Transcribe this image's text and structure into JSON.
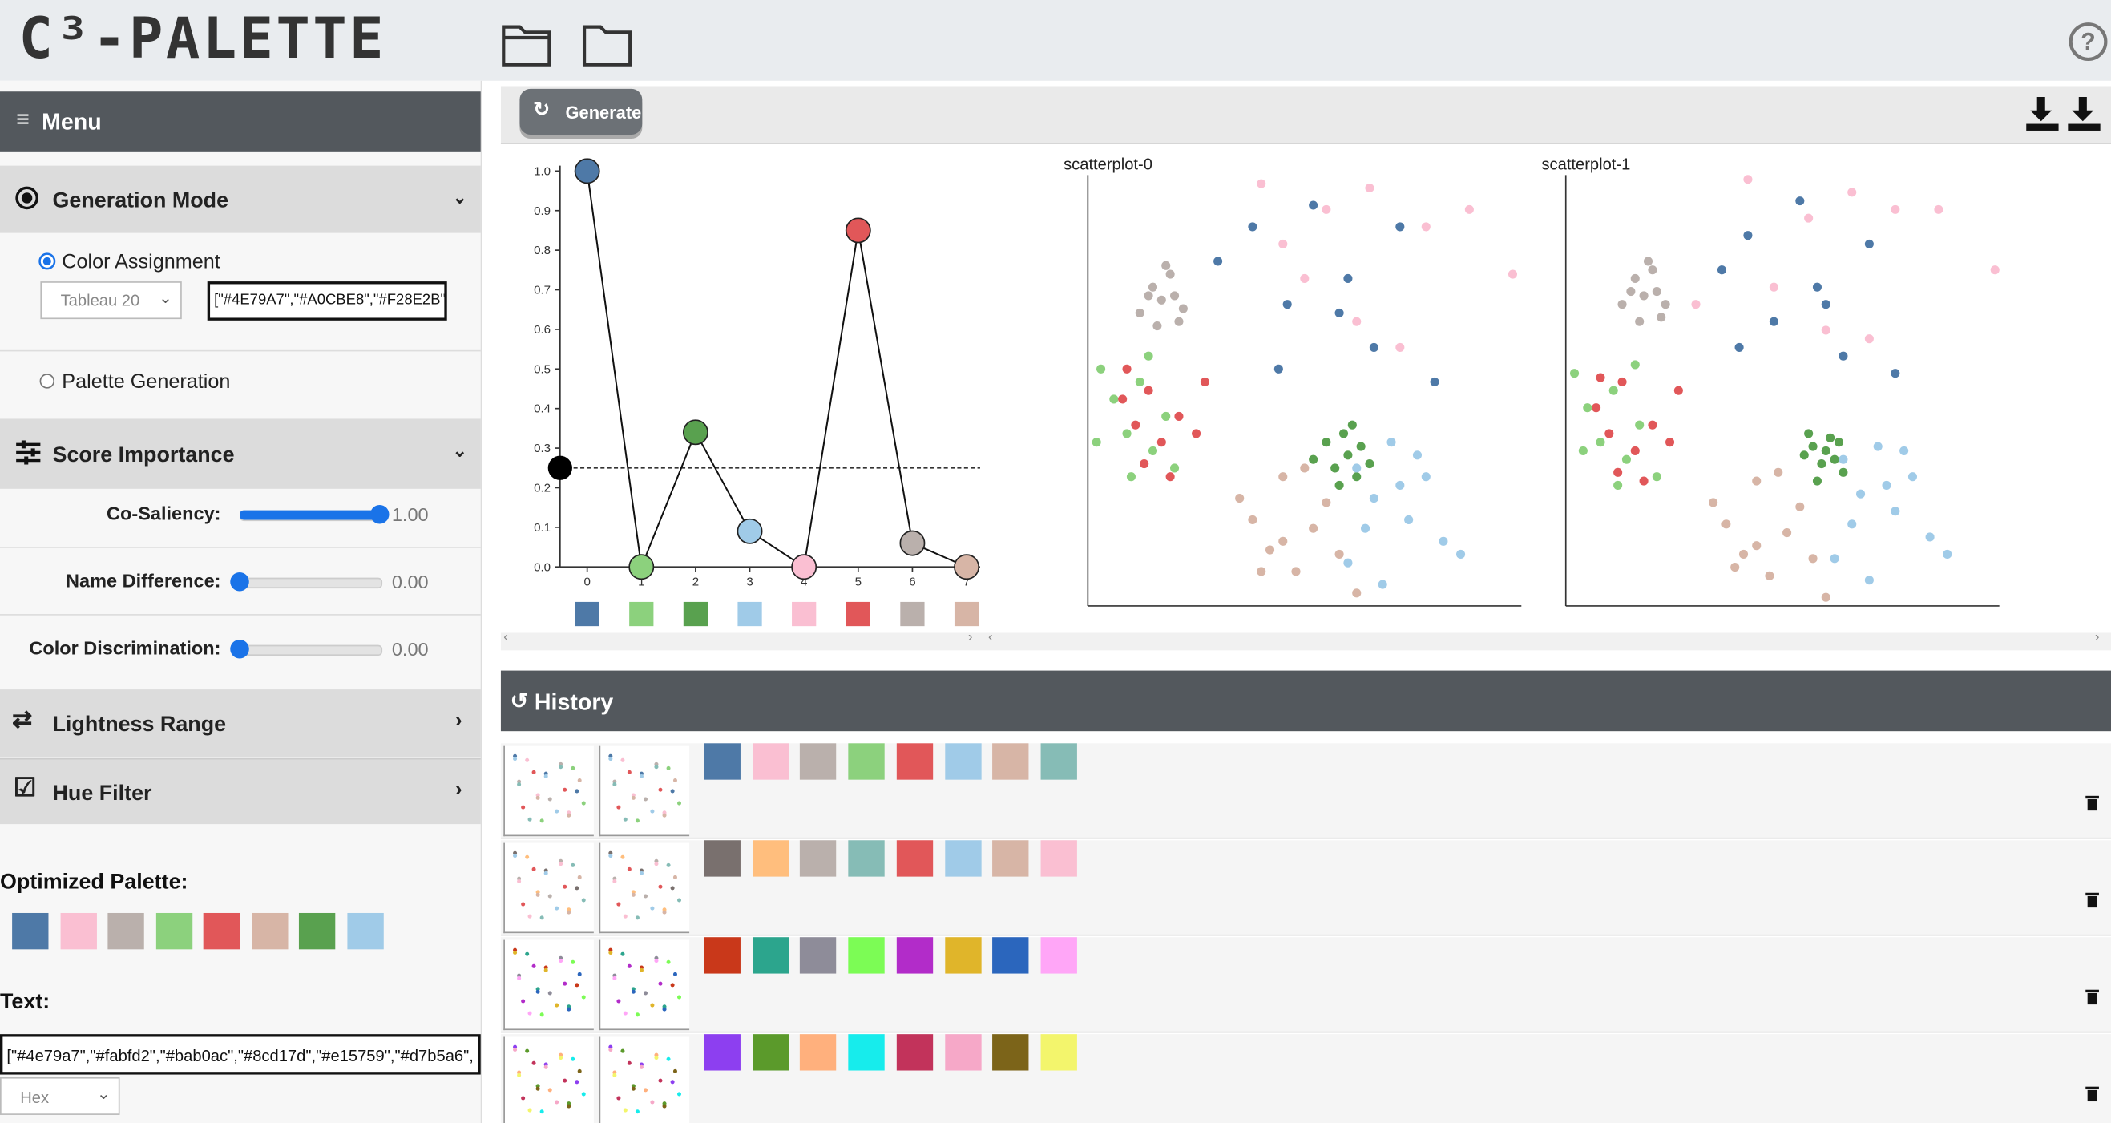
{
  "header": {
    "title": "C³-PALETTE"
  },
  "menu": {
    "title": "Menu",
    "generation_mode": {
      "title": "Generation Mode",
      "option_1": "Color Assignment",
      "palette_select": "Tableau 20",
      "input": "[\"#4E79A7\",\"#A0CBE8\",\"#F28E2B\",\"#",
      "option_2": "Palette Generation"
    },
    "score_importance": {
      "title": "Score Importance",
      "sliders": [
        {
          "label": "Co-Saliency:",
          "value": {
            "value": 1,
            "label": "1.00"
          }
        },
        {
          "label": "Name Difference:",
          "value": {
            "value": 0,
            "label": "0.00"
          }
        },
        {
          "label": "Color Discrimination:",
          "value": {
            "value": 0,
            "label": "0.00"
          }
        }
      ]
    },
    "lightness_range": {
      "title": "Lightness Range"
    },
    "hue_filter": {
      "title": "Hue Filter"
    },
    "optimized_palette": {
      "title": "Optimized Palette:",
      "colors": [
        "#4e79a7",
        "#fabfd2",
        "#bab0ac",
        "#8cd17d",
        "#e15759",
        "#d7b5a6",
        "#59a14f",
        "#a0cbe8"
      ]
    },
    "text": {
      "title": "Text:",
      "value": "[\"#4e79a7\",\"#fabfd2\",\"#bab0ac\",\"#8cd17d\",\"#e15759\",\"#d7b5a6\",",
      "format": "Hex"
    }
  },
  "toolbar": {
    "generate": "Generate"
  },
  "chart_data": [
    {
      "type": "line",
      "x": [
        0,
        1,
        2,
        3,
        4,
        5,
        6,
        7
      ],
      "values": [
        1.0,
        0,
        0.34,
        0.09,
        0,
        0.85,
        0.06,
        0
      ],
      "colors": [
        "#4e79a7",
        "#8cd17d",
        "#59a14f",
        "#a0cbe8",
        "#fabfd2",
        "#e15759",
        "#bab0ac",
        "#d7b5a6"
      ],
      "reference": 0.25,
      "xlim": [
        -0.5,
        7.25
      ],
      "ylim": [
        0,
        1.0
      ],
      "xticks": [
        0,
        1,
        2,
        3,
        4,
        5,
        6,
        7
      ],
      "yticks": [
        {
          "value": 0,
          "label": "0.0"
        },
        0.1,
        0.2,
        0.3,
        0.4,
        0.5,
        0.6,
        0.7,
        0.8,
        0.9,
        {
          "value": 1,
          "label": "1.0"
        }
      ]
    },
    {
      "type": "scatter",
      "title": "scatterplot-0",
      "xlim": [
        0,
        100
      ],
      "ylim": [
        0,
        100
      ],
      "series": [
        {
          "color": "#4e79a7",
          "x": [
            30,
            38,
            46,
            52,
            60,
            66,
            72,
            80,
            44,
            58
          ],
          "values": [
            80,
            88,
            70,
            93,
            76,
            60,
            88,
            52,
            55,
            68
          ]
        },
        {
          "color": "#fabfd2",
          "x": [
            40,
            55,
            65,
            78,
            88,
            98,
            50,
            62,
            72,
            45
          ],
          "values": [
            98,
            92,
            97,
            88,
            92,
            77,
            76,
            66,
            60,
            84
          ]
        },
        {
          "color": "#bab0ac",
          "x": [
            12,
            15,
            17,
            19,
            20,
            22,
            16,
            18,
            14,
            21
          ],
          "values": [
            68,
            74,
            71,
            77,
            72,
            69,
            65,
            79,
            72,
            66
          ]
        },
        {
          "color": "#8cd17d",
          "x": [
            3,
            6,
            9,
            12,
            15,
            18,
            20,
            2,
            10,
            14
          ],
          "values": [
            55,
            48,
            40,
            52,
            36,
            44,
            32,
            38,
            30,
            58
          ]
        },
        {
          "color": "#e15759",
          "x": [
            8,
            11,
            14,
            17,
            21,
            25,
            27,
            13,
            19,
            9
          ],
          "values": [
            48,
            42,
            50,
            38,
            44,
            40,
            52,
            33,
            30,
            55
          ]
        },
        {
          "color": "#d7b5a6",
          "x": [
            35,
            38,
            42,
            45,
            48,
            52,
            55,
            58,
            62,
            40,
            50,
            45
          ],
          "values": [
            25,
            20,
            13,
            30,
            8,
            18,
            24,
            12,
            3,
            8,
            32,
            15
          ]
        },
        {
          "color": "#59a14f",
          "x": [
            52,
            55,
            57,
            59,
            60,
            62,
            63,
            65,
            58,
            61
          ],
          "values": [
            34,
            38,
            32,
            40,
            35,
            30,
            37,
            33,
            28,
            42
          ]
        },
        {
          "color": "#a0cbe8",
          "x": [
            62,
            66,
            70,
            74,
            78,
            82,
            86,
            60,
            68,
            76,
            72,
            64
          ],
          "values": [
            32,
            25,
            38,
            20,
            30,
            15,
            12,
            10,
            5,
            35,
            28,
            18
          ]
        }
      ]
    },
    {
      "type": "scatter",
      "title": "scatterplot-1",
      "xlim": [
        0,
        100
      ],
      "ylim": [
        0,
        100
      ],
      "series": [
        {
          "color": "#4e79a7",
          "x": [
            36,
            42,
            48,
            54,
            58,
            64,
            70,
            76,
            40,
            60
          ],
          "values": [
            78,
            86,
            66,
            94,
            74,
            58,
            84,
            54,
            60,
            70
          ]
        },
        {
          "color": "#fabfd2",
          "x": [
            42,
            56,
            66,
            76,
            86,
            99,
            48,
            60,
            70,
            30
          ],
          "values": [
            99,
            90,
            96,
            92,
            92,
            78,
            74,
            64,
            62,
            70
          ]
        },
        {
          "color": "#bab0ac",
          "x": [
            13,
            16,
            18,
            20,
            21,
            23,
            17,
            19,
            15,
            22
          ],
          "values": [
            70,
            76,
            72,
            78,
            73,
            70,
            66,
            80,
            73,
            67
          ]
        },
        {
          "color": "#8cd17d",
          "x": [
            2,
            5,
            8,
            11,
            14,
            17,
            21,
            4,
            12,
            16
          ],
          "values": [
            54,
            46,
            38,
            50,
            34,
            42,
            30,
            36,
            28,
            56
          ]
        },
        {
          "color": "#e15759",
          "x": [
            7,
            10,
            13,
            16,
            20,
            24,
            26,
            12,
            18,
            8
          ],
          "values": [
            46,
            40,
            52,
            36,
            42,
            38,
            50,
            31,
            29,
            53
          ]
        },
        {
          "color": "#d7b5a6",
          "x": [
            34,
            37,
            41,
            44,
            47,
            51,
            54,
            57,
            60,
            39,
            49,
            44
          ],
          "values": [
            24,
            19,
            12,
            29,
            7,
            17,
            23,
            11,
            2,
            9,
            31,
            14
          ]
        },
        {
          "color": "#59a14f",
          "x": [
            55,
            57,
            59,
            61,
            62,
            64,
            58,
            56,
            60,
            63
          ],
          "values": [
            35,
            37,
            33,
            39,
            34,
            31,
            29,
            40,
            36,
            38
          ]
        },
        {
          "color": "#a0cbe8",
          "x": [
            64,
            68,
            72,
            76,
            80,
            84,
            88,
            62,
            70,
            78,
            74,
            66
          ],
          "values": [
            34,
            26,
            37,
            22,
            30,
            16,
            12,
            11,
            6,
            36,
            28,
            19
          ]
        }
      ]
    }
  ],
  "history": {
    "title": "History",
    "rows": [
      {
        "colors": [
          "#4e79a7",
          "#fabfd2",
          "#bab0ac",
          "#8cd17d",
          "#e15759",
          "#a0cbe8",
          "#d7b5a6",
          "#86bcb6"
        ]
      },
      {
        "colors": [
          "#79706e",
          "#ffbe7d",
          "#bab0ac",
          "#86bcb6",
          "#e15759",
          "#a0cbe8",
          "#d7b5a6",
          "#fabfd2"
        ]
      },
      {
        "colors": [
          "#c9381a",
          "#2ca58d",
          "#8e8c99",
          "#7cfc55",
          "#b22cc9",
          "#e0b52a",
          "#2b66bd",
          "#ffa6f7"
        ]
      },
      {
        "colors": [
          "#8d3ff0",
          "#5b9a2b",
          "#ffb07d",
          "#17ecec",
          "#c2335b",
          "#f6a8c8",
          "#7c6419",
          "#f3f56c"
        ]
      }
    ]
  }
}
